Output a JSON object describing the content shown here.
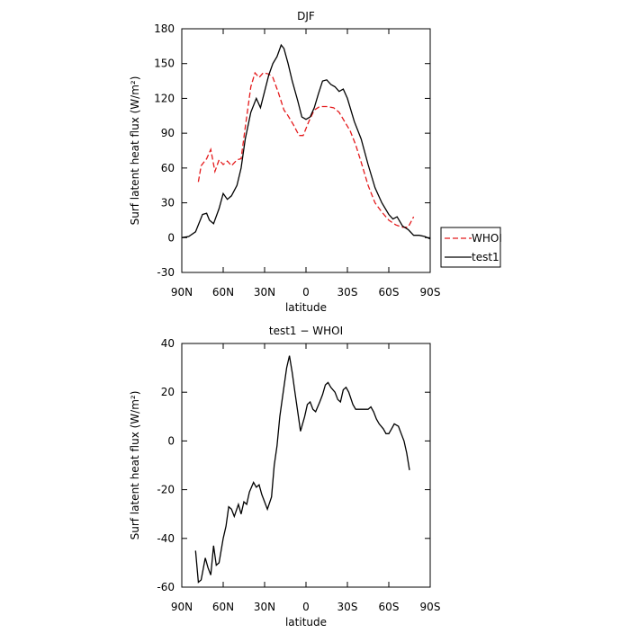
{
  "chart_data": [
    {
      "type": "line",
      "title": "DJF",
      "xlabel": "latitude",
      "ylabel": "Surf latent heat flux (W/m²)",
      "xlim": [
        90,
        -90
      ],
      "xticks": [
        {
          "value": 90,
          "label": "90N"
        },
        {
          "value": 60,
          "label": "60N"
        },
        {
          "value": 30,
          "label": "30N"
        },
        0,
        {
          "value": -30,
          "label": "30S"
        },
        {
          "value": -60,
          "label": "60S"
        },
        {
          "value": -90,
          "label": "90S"
        }
      ],
      "ylim": [
        -30,
        180
      ],
      "yticks": [
        -30,
        0,
        30,
        60,
        90,
        120,
        150,
        180
      ],
      "legend": "right",
      "series": [
        {
          "name": "WHOI",
          "color": "#e41a1c",
          "dash": "dashed",
          "x": [
            78,
            76,
            72,
            69,
            66,
            63,
            60,
            57,
            54,
            50,
            47,
            44,
            40,
            37,
            34,
            31,
            27,
            24,
            20,
            16,
            13,
            9,
            5,
            2,
            -2,
            -6,
            -10,
            -15,
            -20,
            -24,
            -28,
            -32,
            -36,
            -40,
            -45,
            -50,
            -55,
            -60,
            -65,
            -70,
            -74,
            -78
          ],
          "values": [
            48,
            62,
            68,
            76,
            57,
            67,
            63,
            66,
            62,
            67,
            68,
            95,
            130,
            142,
            138,
            142,
            141,
            138,
            125,
            110,
            105,
            97,
            88,
            88,
            100,
            110,
            113,
            113,
            112,
            108,
            100,
            92,
            80,
            65,
            45,
            30,
            22,
            15,
            11,
            9,
            9,
            18
          ]
        },
        {
          "name": "test1",
          "color": "#000000",
          "dash": "solid",
          "x": [
            90,
            85,
            80,
            75,
            72,
            70,
            67,
            63,
            60,
            57,
            54,
            50,
            47,
            44,
            40,
            36,
            33,
            30,
            27,
            24,
            21,
            18,
            16,
            13,
            10,
            6,
            3,
            0,
            -3,
            -6,
            -9,
            -12,
            -15,
            -18,
            -21,
            -24,
            -27,
            -30,
            -35,
            -40,
            -45,
            -50,
            -55,
            -60,
            -63,
            -66,
            -70,
            -74,
            -78,
            -82,
            -86,
            -90
          ],
          "values": [
            0,
            1,
            5,
            20,
            21,
            15,
            12,
            25,
            38,
            33,
            36,
            45,
            60,
            85,
            108,
            120,
            112,
            126,
            140,
            150,
            156,
            166,
            163,
            150,
            135,
            118,
            104,
            102,
            104,
            112,
            124,
            135,
            136,
            132,
            130,
            126,
            128,
            120,
            100,
            85,
            63,
            43,
            30,
            20,
            16,
            18,
            10,
            7,
            2,
            2,
            1,
            -1
          ]
        }
      ]
    },
    {
      "type": "line",
      "title": "test1 − WHOI",
      "xlabel": "latitude",
      "ylabel": "Surf latent heat flux (W/m²)",
      "xlim": [
        90,
        -90
      ],
      "xticks": [
        {
          "value": 90,
          "label": "90N"
        },
        {
          "value": 60,
          "label": "60N"
        },
        {
          "value": 30,
          "label": "30N"
        },
        0,
        {
          "value": -30,
          "label": "30S"
        },
        {
          "value": -60,
          "label": "60S"
        },
        {
          "value": -90,
          "label": "90S"
        }
      ],
      "ylim": [
        -60,
        40
      ],
      "yticks": [
        -60,
        -40,
        -20,
        0,
        20,
        40
      ],
      "series": [
        {
          "color": "#000000",
          "dash": "solid",
          "x": [
            80,
            78,
            76,
            73,
            71,
            69,
            67,
            65,
            63,
            60,
            58,
            56,
            54,
            52,
            49,
            47,
            45,
            43,
            41,
            38,
            36,
            34,
            32,
            30,
            28,
            25,
            23,
            21,
            19,
            17,
            14,
            12,
            10,
            8,
            6,
            4,
            1,
            -1,
            -3,
            -5,
            -7,
            -10,
            -12,
            -14,
            -16,
            -18,
            -21,
            -23,
            -25,
            -27,
            -29,
            -31,
            -34,
            -36,
            -38,
            -40,
            -42,
            -45,
            -47,
            -49,
            -51,
            -53,
            -56,
            -58,
            -60,
            -62,
            -64,
            -67,
            -69,
            -71,
            -73,
            -75
          ],
          "values": [
            -45,
            -58,
            -57,
            -48,
            -52,
            -55,
            -43,
            -51,
            -50,
            -40,
            -35,
            -27,
            -28,
            -31,
            -26,
            -30,
            -25,
            -26,
            -21,
            -17,
            -19,
            -18,
            -22,
            -25,
            -28,
            -23,
            -10,
            -2,
            10,
            18,
            30,
            35,
            28,
            20,
            12,
            4,
            10,
            15,
            16,
            13,
            12,
            16,
            19,
            23,
            24,
            22,
            20,
            17,
            16,
            21,
            22,
            20,
            15,
            13,
            13,
            13,
            13,
            13,
            14,
            12,
            9,
            7,
            5,
            3,
            3,
            5,
            7,
            6,
            3,
            0,
            -5,
            -12
          ]
        }
      ]
    }
  ]
}
